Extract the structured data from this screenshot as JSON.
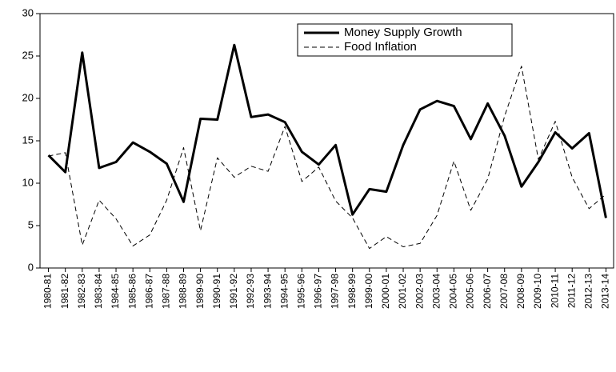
{
  "chart_data": {
    "type": "line",
    "categories": [
      "1980-81",
      "1981-82",
      "1982-83",
      "1983-84",
      "1984-85",
      "1985-86",
      "1986-87",
      "1987-88",
      "1988-89",
      "1989-90",
      "1990-91",
      "1991-92",
      "1992-93",
      "1993-94",
      "1994-95",
      "1995-96",
      "1996-97",
      "1997-98",
      "1998-99",
      "1999-00",
      "2000-01",
      "2001-02",
      "2002-03",
      "2003-04",
      "2004-05",
      "2005-06",
      "2006-07",
      "2007-08",
      "2008-09",
      "2009-10",
      "2010-11",
      "2011-12",
      "2012-13",
      "2013-14"
    ],
    "series": [
      {
        "name": "Money Supply Growth",
        "color": "#000000",
        "style": "solid",
        "values": [
          13.3,
          11.3,
          25.4,
          11.8,
          12.5,
          14.8,
          13.7,
          12.3,
          7.8,
          17.6,
          17.5,
          26.3,
          17.8,
          18.1,
          17.2,
          13.7,
          12.2,
          14.5,
          6.3,
          9.3,
          9.0,
          14.5,
          18.7,
          19.7,
          19.1,
          15.2,
          19.4,
          15.6,
          9.6,
          12.5,
          16.0,
          14.1,
          15.9,
          5.9
        ]
      },
      {
        "name": "Food Inflation",
        "color": "#000000",
        "style": "dashed",
        "values": [
          13.2,
          13.6,
          2.7,
          8.0,
          5.8,
          2.6,
          3.9,
          8.0,
          14.2,
          4.4,
          13.0,
          10.7,
          12.0,
          11.4,
          16.7,
          10.2,
          11.9,
          7.9,
          5.9,
          2.3,
          3.7,
          2.5,
          2.9,
          6.2,
          12.6,
          6.8,
          10.5,
          17.9,
          23.8,
          12.8,
          17.3,
          10.7,
          7.0,
          8.7
        ]
      }
    ],
    "ylim": [
      0,
      30
    ],
    "yticks": [
      0,
      5,
      10,
      15,
      20,
      25,
      30
    ],
    "legend": "top"
  }
}
